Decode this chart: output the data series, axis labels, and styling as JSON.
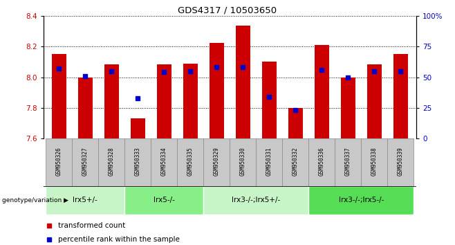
{
  "title": "GDS4317 / 10503650",
  "samples": [
    "GSM950326",
    "GSM950327",
    "GSM950328",
    "GSM950333",
    "GSM950334",
    "GSM950335",
    "GSM950329",
    "GSM950330",
    "GSM950331",
    "GSM950332",
    "GSM950336",
    "GSM950337",
    "GSM950338",
    "GSM950339"
  ],
  "transformed_count": [
    8.15,
    8.0,
    8.085,
    7.73,
    8.085,
    8.09,
    8.225,
    8.335,
    8.1,
    7.8,
    8.21,
    8.0,
    8.085,
    8.15
  ],
  "percentile_rank": [
    57,
    51,
    55,
    33,
    54,
    55,
    58,
    58,
    34,
    23,
    56,
    50,
    55,
    55
  ],
  "bar_bottom": 7.6,
  "ylim_left": [
    7.6,
    8.4
  ],
  "ylim_right": [
    0,
    100
  ],
  "yticks_left": [
    7.6,
    7.8,
    8.0,
    8.2,
    8.4
  ],
  "yticks_right": [
    0,
    25,
    50,
    75,
    100
  ],
  "ytick_labels_right": [
    "0",
    "25",
    "50",
    "75",
    "100%"
  ],
  "bar_color": "#CC0000",
  "percentile_color": "#0000CC",
  "groups": [
    {
      "label": "lrx5+/-",
      "start": 0,
      "end": 3,
      "color": "#C8F5C8"
    },
    {
      "label": "lrx5-/-",
      "start": 3,
      "end": 6,
      "color": "#88EE88"
    },
    {
      "label": "lrx3-/-;lrx5+/-",
      "start": 6,
      "end": 10,
      "color": "#C8F5C8"
    },
    {
      "label": "lrx3-/-;lrx5-/-",
      "start": 10,
      "end": 14,
      "color": "#55DD55"
    }
  ],
  "legend_items": [
    {
      "label": "transformed count",
      "color": "#CC0000"
    },
    {
      "label": "percentile rank within the sample",
      "color": "#0000CC"
    }
  ],
  "bar_width": 0.55,
  "sample_box_color": "#C8C8C8",
  "sample_box_edge": "#888888"
}
